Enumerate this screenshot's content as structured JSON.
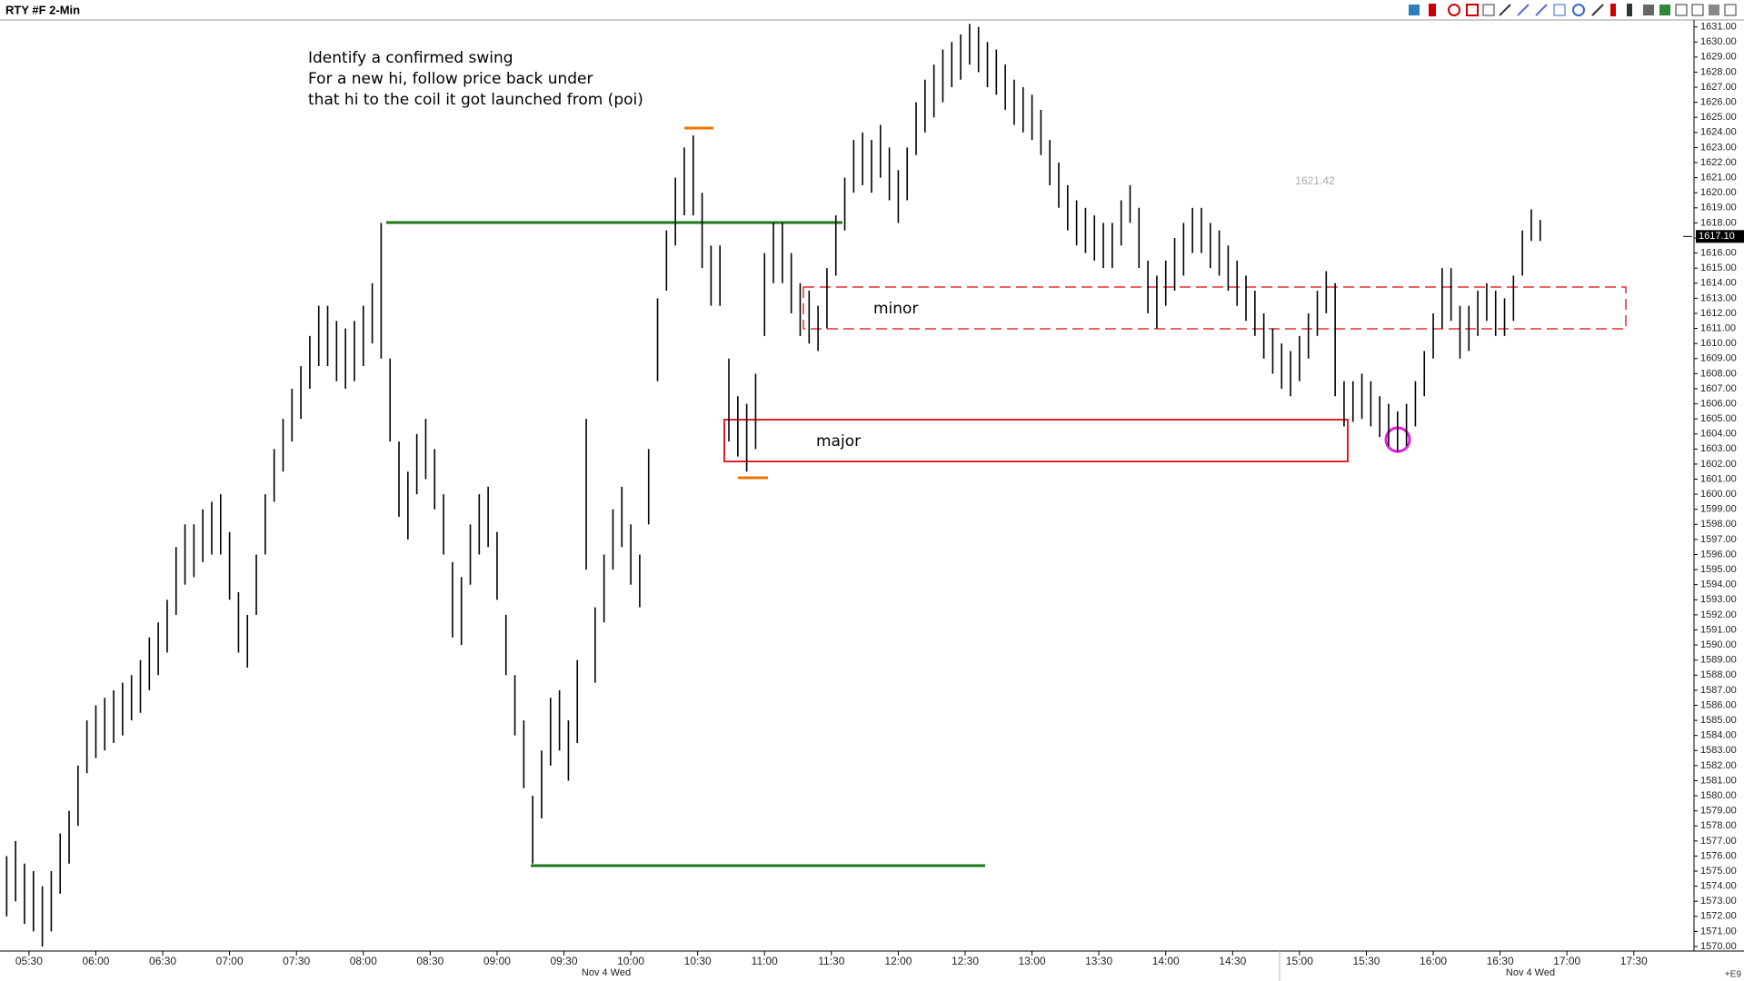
{
  "chart_data": {
    "type": "ohlc",
    "title": "RTY #F 2-Min",
    "color": "#000000",
    "x": [
      "05:20",
      "05:24",
      "05:28",
      "05:32",
      "05:36",
      "05:40",
      "05:44",
      "05:48",
      "05:52",
      "05:56",
      "06:00",
      "06:04",
      "06:08",
      "06:12",
      "06:16",
      "06:20",
      "06:24",
      "06:28",
      "06:32",
      "06:36",
      "06:40",
      "06:44",
      "06:48",
      "06:52",
      "06:56",
      "07:00",
      "07:04",
      "07:08",
      "07:12",
      "07:16",
      "07:20",
      "07:24",
      "07:28",
      "07:32",
      "07:36",
      "07:40",
      "07:44",
      "07:48",
      "07:52",
      "07:56",
      "08:00",
      "08:04",
      "08:08",
      "08:12",
      "08:16",
      "08:20",
      "08:24",
      "08:28",
      "08:32",
      "08:36",
      "08:40",
      "08:44",
      "08:48",
      "08:52",
      "08:56",
      "09:00",
      "09:04",
      "09:08",
      "09:12",
      "09:16",
      "09:20",
      "09:24",
      "09:28",
      "09:32",
      "09:36",
      "09:40",
      "09:44",
      "09:48",
      "09:52",
      "09:56",
      "10:00",
      "10:04",
      "10:08",
      "10:12",
      "10:16",
      "10:20",
      "10:24",
      "10:28",
      "10:32",
      "10:36",
      "10:40",
      "10:44",
      "10:48",
      "10:52",
      "10:56",
      "11:00",
      "11:04",
      "11:08",
      "11:12",
      "11:16",
      "11:20",
      "11:24",
      "11:28",
      "11:32",
      "11:36",
      "11:40",
      "11:44",
      "11:48",
      "11:52",
      "11:56",
      "12:00",
      "12:04",
      "12:08",
      "12:12",
      "12:16",
      "12:20",
      "12:24",
      "12:28",
      "12:32",
      "12:36",
      "12:40",
      "12:44",
      "12:48",
      "12:52",
      "12:56",
      "13:00",
      "13:04",
      "13:08",
      "13:12",
      "13:16",
      "13:20",
      "13:24",
      "13:28",
      "13:32",
      "13:36",
      "13:40",
      "13:44",
      "13:48",
      "13:52",
      "13:56",
      "14:00",
      "14:04",
      "14:08",
      "14:12",
      "14:16",
      "14:20",
      "14:24",
      "14:28",
      "14:32",
      "14:36",
      "14:40",
      "14:44",
      "14:48",
      "14:52",
      "14:56",
      "15:00",
      "15:04",
      "15:08",
      "15:12",
      "15:16",
      "15:20",
      "15:24",
      "15:28",
      "15:32",
      "15:36",
      "15:40",
      "15:44",
      "15:48",
      "15:52",
      "15:56",
      "16:00",
      "16:04",
      "16:08",
      "16:12",
      "16:16",
      "16:20",
      "16:24",
      "16:28",
      "16:32",
      "16:36",
      "16:40",
      "16:44",
      "16:48"
    ],
    "high": [
      1576,
      1577,
      1575.5,
      1575,
      1574,
      1575,
      1577.5,
      1579,
      1582,
      1585,
      1586,
      1586.5,
      1587,
      1587.5,
      1588,
      1589,
      1590.5,
      1591.5,
      1593,
      1596.5,
      1598,
      1598,
      1599,
      1599.5,
      1600,
      1597.5,
      1593.5,
      1592,
      1596,
      1600,
      1603,
      1605,
      1607,
      1608.5,
      1610.5,
      1612.5,
      1612.5,
      1611.5,
      1611,
      1611.5,
      1612.5,
      1614,
      1618,
      1609,
      1603.5,
      1601.5,
      1604,
      1605,
      1603,
      1600,
      1595.5,
      1594.5,
      1598,
      1600,
      1600.5,
      1597.5,
      1592,
      1588,
      1585,
      1580,
      1583,
      1586.5,
      1587,
      1585,
      1589,
      1605,
      1592.5,
      1596,
      1599,
      1600.5,
      1598,
      1596,
      1603,
      1613,
      1617.5,
      1621,
      1623,
      1623.8,
      1620,
      1616.5,
      1616.5,
      1609,
      1606.5,
      1606,
      1608,
      1616,
      1618,
      1618,
      1616,
      1614,
      1613.5,
      1612.5,
      1615,
      1618.5,
      1621,
      1623.5,
      1624,
      1623.5,
      1624.5,
      1623,
      1621.5,
      1623,
      1626,
      1627.5,
      1628.5,
      1629.5,
      1630,
      1630.5,
      1631.2,
      1631,
      1630,
      1629.5,
      1628.5,
      1627.5,
      1627,
      1626.5,
      1625.5,
      1623.5,
      1622,
      1620.5,
      1619.5,
      1619,
      1618.5,
      1618,
      1618,
      1619.5,
      1620.5,
      1619,
      1615.5,
      1614.5,
      1615.5,
      1617,
      1618,
      1619,
      1619,
      1618,
      1617.5,
      1616.5,
      1615.5,
      1614.5,
      1613.5,
      1612,
      1611,
      1610,
      1609.5,
      1610.5,
      1612,
      1613.5,
      1614.8,
      1614,
      1607.5,
      1607.5,
      1608,
      1607.5,
      1606.5,
      1606,
      1605.5,
      1606,
      1607.5,
      1609.5,
      1612,
      1615,
      1615,
      1612.5,
      1612.5,
      1613.5,
      1614,
      1613.5,
      1613,
      1614.5,
      1617.5,
      1618.9,
      1618.2
    ],
    "low": [
      1572,
      1573,
      1571.5,
      1571,
      1570,
      1571,
      1573.5,
      1575.5,
      1578,
      1581.5,
      1582.5,
      1583,
      1583.5,
      1584,
      1585,
      1585.5,
      1587,
      1588,
      1589.5,
      1592,
      1594,
      1594.5,
      1595.5,
      1596,
      1596,
      1593,
      1589.5,
      1588.5,
      1592,
      1596,
      1599.5,
      1601.5,
      1603.5,
      1605,
      1607,
      1608.5,
      1608.5,
      1607.5,
      1607,
      1607.5,
      1608.5,
      1610,
      1609,
      1603.5,
      1598.5,
      1597,
      1600,
      1601,
      1599,
      1596,
      1590.5,
      1590,
      1594,
      1596,
      1596.5,
      1593,
      1588,
      1584,
      1580.5,
      1575.5,
      1578.5,
      1582,
      1583,
      1581,
      1583.5,
      1595,
      1587.5,
      1591.5,
      1595,
      1596.5,
      1594,
      1592.5,
      1598,
      1607.5,
      1613.5,
      1616.5,
      1618.5,
      1618.5,
      1615,
      1612.5,
      1612.5,
      1603.5,
      1602.5,
      1601.5,
      1603,
      1610.5,
      1614,
      1614,
      1612,
      1610.5,
      1610,
      1609.5,
      1611,
      1614.5,
      1617.5,
      1620,
      1620.5,
      1620,
      1621,
      1619.5,
      1618,
      1619.5,
      1622.5,
      1624,
      1625,
      1626,
      1627,
      1627.5,
      1628.5,
      1628,
      1627,
      1626.5,
      1625.5,
      1624.5,
      1624,
      1623.5,
      1622.5,
      1620.5,
      1619,
      1617.5,
      1616.5,
      1616,
      1615.5,
      1615,
      1615,
      1616.5,
      1618,
      1615,
      1612,
      1611,
      1612.5,
      1613.5,
      1614.5,
      1616,
      1616,
      1615,
      1614.5,
      1613.5,
      1612.5,
      1611.5,
      1610.5,
      1609,
      1608,
      1607,
      1606.5,
      1607.5,
      1609,
      1610.5,
      1612,
      1606.5,
      1604.5,
      1604.8,
      1605,
      1604.5,
      1603.8,
      1603.2,
      1602.8,
      1603.2,
      1604.5,
      1606.5,
      1609,
      1611,
      1611.5,
      1609,
      1609.5,
      1610.5,
      1611.5,
      1610.5,
      1610.5,
      1611.5,
      1614.5,
      1616.8,
      1616.8
    ],
    "xlim": [
      "05:17",
      "17:57"
    ],
    "xticks": [
      "05:30",
      "06:00",
      "06:30",
      "07:00",
      "07:30",
      "08:00",
      "08:30",
      "09:00",
      "09:30",
      "10:00",
      "10:30",
      "11:00",
      "11:30",
      "12:00",
      "12:30",
      "13:00",
      "13:30",
      "14:00",
      "14:30",
      "15:00",
      "15:30",
      "16:00",
      "16:30",
      "17:00",
      "17:30"
    ],
    "date_labels": [
      "Nov 4 Wed",
      "Nov 4 Wed"
    ],
    "ylim": [
      1569.7,
      1631.4
    ],
    "yticks": [
      {
        "value": 1570,
        "label": "1570.00"
      },
      {
        "value": 1571,
        "label": "1571.00"
      },
      {
        "value": 1572,
        "label": "1572.00"
      },
      {
        "value": 1573,
        "label": "1573.00"
      },
      {
        "value": 1574,
        "label": "1574.00"
      },
      {
        "value": 1575,
        "label": "1575.00"
      },
      {
        "value": 1576,
        "label": "1576.00"
      },
      {
        "value": 1577,
        "label": "1577.00"
      },
      {
        "value": 1578,
        "label": "1578.00"
      },
      {
        "value": 1579,
        "label": "1579.00"
      },
      {
        "value": 1580,
        "label": "1580.00"
      },
      {
        "value": 1581,
        "label": "1581.00"
      },
      {
        "value": 1582,
        "label": "1582.00"
      },
      {
        "value": 1583,
        "label": "1583.00"
      },
      {
        "value": 1584,
        "label": "1584.00"
      },
      {
        "value": 1585,
        "label": "1585.00"
      },
      {
        "value": 1586,
        "label": "1586.00"
      },
      {
        "value": 1587,
        "label": "1587.00"
      },
      {
        "value": 1588,
        "label": "1588.00"
      },
      {
        "value": 1589,
        "label": "1589.00"
      },
      {
        "value": 1590,
        "label": "1590.00"
      },
      {
        "value": 1591,
        "label": "1591.00"
      },
      {
        "value": 1592,
        "label": "1592.00"
      },
      {
        "value": 1593,
        "label": "1593.00"
      },
      {
        "value": 1594,
        "label": "1594.00"
      },
      {
        "value": 1595,
        "label": "1595.00"
      },
      {
        "value": 1596,
        "label": "1596.00"
      },
      {
        "value": 1597,
        "label": "1597.00"
      },
      {
        "value": 1598,
        "label": "1598.00"
      },
      {
        "value": 1599,
        "label": "1599.00"
      },
      {
        "value": 1600,
        "label": "1600.00"
      },
      {
        "value": 1601,
        "label": "1601.00"
      },
      {
        "value": 1602,
        "label": "1602.00"
      },
      {
        "value": 1603,
        "label": "1603.00"
      },
      {
        "value": 1604,
        "label": "1604.00"
      },
      {
        "value": 1605,
        "label": "1605.00"
      },
      {
        "value": 1606,
        "label": "1606.00"
      },
      {
        "value": 1607,
        "label": "1607.00"
      },
      {
        "value": 1608,
        "label": "1608.00"
      },
      {
        "value": 1609,
        "label": "1609.00"
      },
      {
        "value": 1610,
        "label": "1610.00"
      },
      {
        "value": 1611,
        "label": "1611.00"
      },
      {
        "value": 1612,
        "label": "1612.00"
      },
      {
        "value": 1613,
        "label": "1613.00"
      },
      {
        "value": 1614,
        "label": "1614.00"
      },
      {
        "value": 1615,
        "label": "1615.00"
      },
      {
        "value": 1616,
        "label": "1616.00"
      },
      {
        "value": 1617,
        "label": "1617.00"
      },
      {
        "value": 1618,
        "label": "1618.00"
      },
      {
        "value": 1619,
        "label": "1619.00"
      },
      {
        "value": 1620,
        "label": "1620.00"
      },
      {
        "value": 1621,
        "label": "1621.00"
      },
      {
        "value": 1622,
        "label": "1622.00"
      },
      {
        "value": 1623,
        "label": "1623.00"
      },
      {
        "value": 1624,
        "label": "1624.00"
      },
      {
        "value": 1625,
        "label": "1625.00"
      },
      {
        "value": 1626,
        "label": "1626.00"
      },
      {
        "value": 1627,
        "label": "1627.00"
      },
      {
        "value": 1628,
        "label": "1628.00"
      },
      {
        "value": 1629,
        "label": "1629.00"
      },
      {
        "value": 1630,
        "label": "1630.00"
      },
      {
        "value": 1631,
        "label": "1631.00"
      }
    ],
    "last_price": {
      "value": 1617.1,
      "label": "1617.10"
    },
    "cursor_price": 1621.42,
    "annotations": [
      "Identify a confirmed swing",
      "For a new hi, follow price back under",
      "that hi to the coil it got launched from (poi)"
    ],
    "zone_labels": [
      "minor",
      "major"
    ],
    "corner_label": "+E9"
  }
}
